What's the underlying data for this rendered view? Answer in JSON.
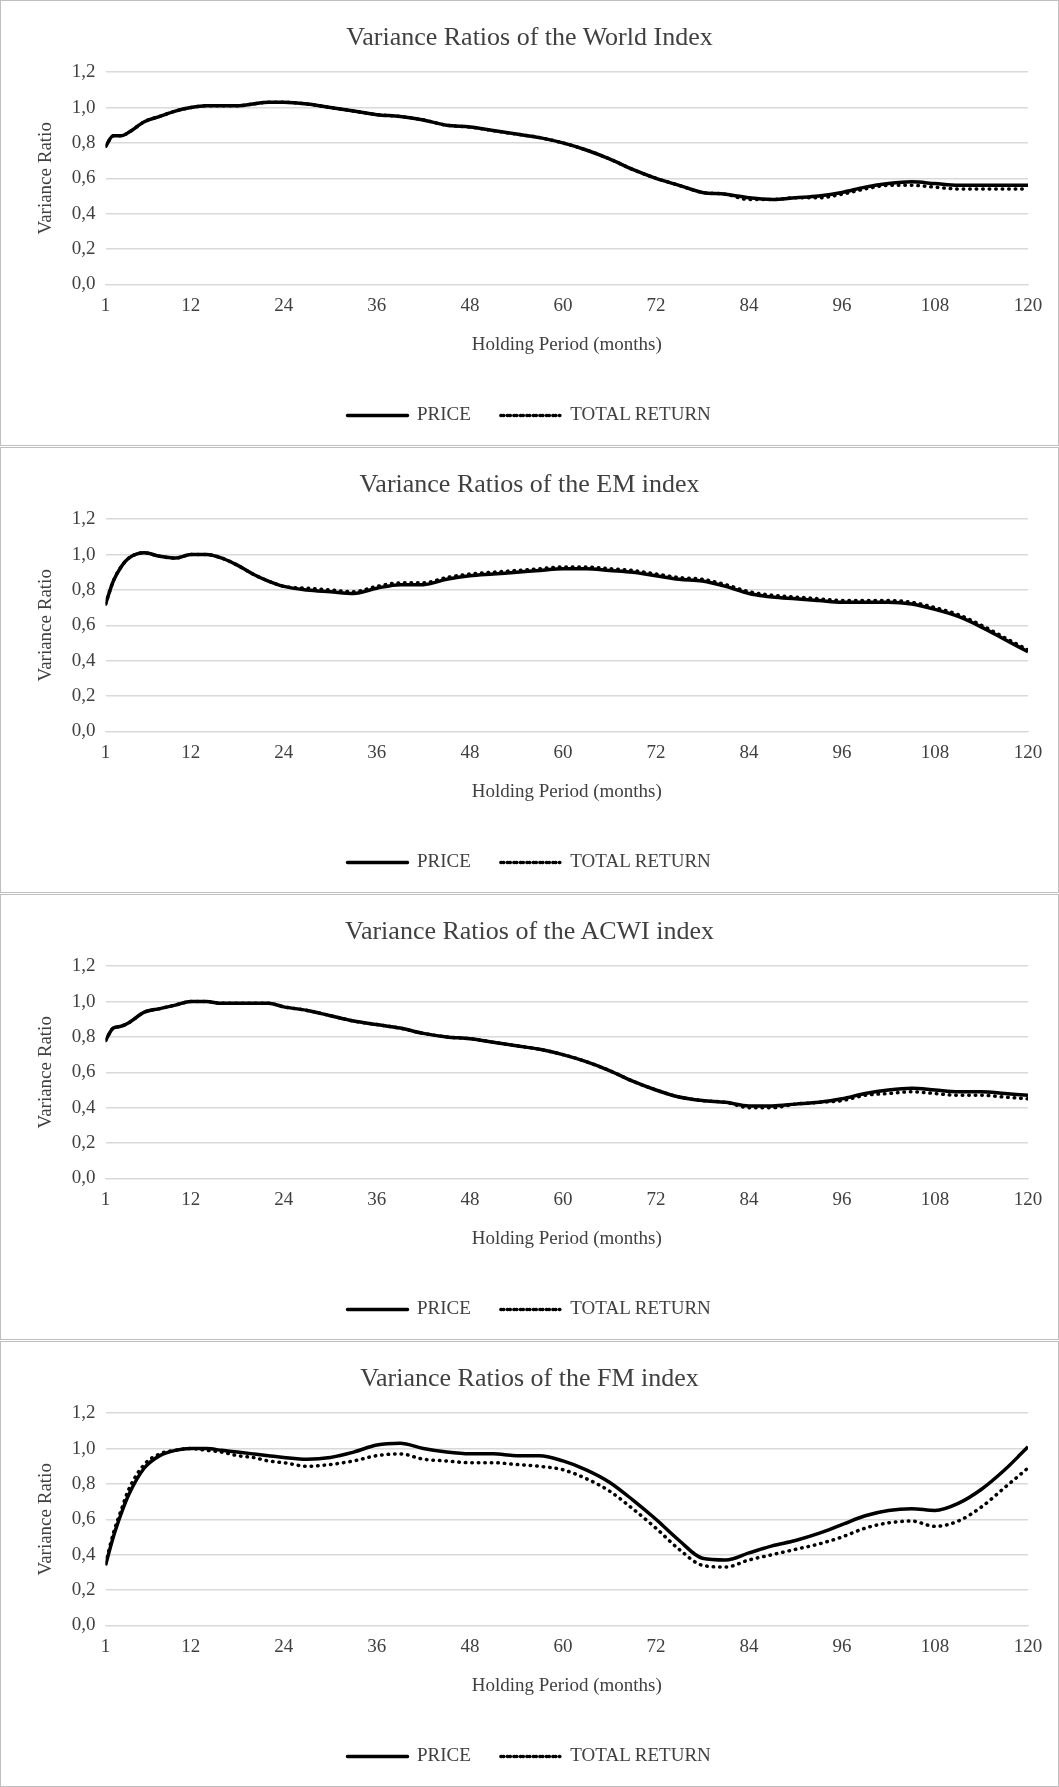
{
  "chart_data": [
    {
      "type": "line",
      "title": "Variance Ratios of the World Index",
      "xlabel": "Holding Period (months)",
      "ylabel": "Variance Ratio",
      "legend": "bottom",
      "grid": "y",
      "marker": "none",
      "x": [
        1,
        2,
        3,
        4,
        6,
        8,
        10,
        12,
        14,
        16,
        18,
        20,
        22,
        24,
        27,
        30,
        33,
        36,
        39,
        42,
        45,
        48,
        51,
        54,
        57,
        60,
        63,
        66,
        69,
        72,
        75,
        78,
        81,
        84,
        87,
        90,
        93,
        96,
        99,
        102,
        105,
        108,
        111,
        114,
        117,
        120
      ],
      "xlim": [
        1,
        120
      ],
      "xticks": [
        1,
        12,
        24,
        36,
        48,
        60,
        72,
        84,
        96,
        108,
        120
      ],
      "ylim": [
        0,
        1.2
      ],
      "yticks": [
        {
          "value": 0,
          "label": "0,0"
        },
        {
          "value": 0.2,
          "label": "0,2"
        },
        {
          "value": 0.4,
          "label": "0,4"
        },
        {
          "value": 0.6,
          "label": "0,6"
        },
        {
          "value": 0.8,
          "label": "0,8"
        },
        {
          "value": 1,
          "label": "1,0"
        },
        {
          "value": 1.2,
          "label": "1,2"
        }
      ],
      "series": [
        {
          "name": "PRICE",
          "color": "#000000",
          "line_style": "solid",
          "values": [
            0.78,
            0.84,
            0.84,
            0.86,
            0.92,
            0.95,
            0.98,
            1.0,
            1.01,
            1.01,
            1.01,
            1.02,
            1.03,
            1.03,
            1.02,
            1.0,
            0.98,
            0.96,
            0.95,
            0.93,
            0.9,
            0.89,
            0.87,
            0.85,
            0.83,
            0.8,
            0.76,
            0.71,
            0.65,
            0.6,
            0.56,
            0.52,
            0.51,
            0.49,
            0.48,
            0.49,
            0.5,
            0.52,
            0.55,
            0.57,
            0.58,
            0.57,
            0.56,
            0.56,
            0.56,
            0.56
          ]
        },
        {
          "name": "TOTAL RETURN",
          "color": "#000000",
          "line_style": "dotted",
          "values": [
            0.78,
            0.84,
            0.84,
            0.86,
            0.92,
            0.95,
            0.98,
            1.0,
            1.01,
            1.01,
            1.01,
            1.02,
            1.03,
            1.03,
            1.02,
            1.0,
            0.98,
            0.96,
            0.95,
            0.93,
            0.9,
            0.89,
            0.87,
            0.85,
            0.83,
            0.8,
            0.76,
            0.71,
            0.65,
            0.6,
            0.56,
            0.52,
            0.51,
            0.48,
            0.48,
            0.49,
            0.49,
            0.51,
            0.54,
            0.56,
            0.56,
            0.55,
            0.54,
            0.54,
            0.54,
            0.54
          ]
        }
      ]
    },
    {
      "type": "line",
      "title": "Variance Ratios of the EM index",
      "xlabel": "Holding Period (months)",
      "ylabel": "Variance Ratio",
      "legend": "bottom",
      "grid": "y",
      "marker": "none",
      "x": [
        1,
        2,
        3,
        4,
        6,
        8,
        10,
        12,
        14,
        16,
        18,
        20,
        22,
        24,
        27,
        30,
        33,
        36,
        39,
        42,
        45,
        48,
        51,
        54,
        57,
        60,
        63,
        66,
        69,
        72,
        75,
        78,
        81,
        84,
        87,
        90,
        93,
        96,
        99,
        102,
        105,
        108,
        111,
        114,
        117,
        120
      ],
      "xlim": [
        1,
        120
      ],
      "xticks": [
        1,
        12,
        24,
        36,
        48,
        60,
        72,
        84,
        96,
        108,
        120
      ],
      "ylim": [
        0,
        1.2
      ],
      "yticks": [
        {
          "value": 0,
          "label": "0,0"
        },
        {
          "value": 0.2,
          "label": "0,2"
        },
        {
          "value": 0.4,
          "label": "0,4"
        },
        {
          "value": 0.6,
          "label": "0,6"
        },
        {
          "value": 0.8,
          "label": "0,8"
        },
        {
          "value": 1,
          "label": "1,0"
        },
        {
          "value": 1.2,
          "label": "1,2"
        }
      ],
      "series": [
        {
          "name": "PRICE",
          "color": "#000000",
          "line_style": "solid",
          "values": [
            0.72,
            0.85,
            0.93,
            0.98,
            1.01,
            0.99,
            0.98,
            1.0,
            1.0,
            0.98,
            0.94,
            0.89,
            0.85,
            0.82,
            0.8,
            0.79,
            0.78,
            0.81,
            0.83,
            0.83,
            0.86,
            0.88,
            0.89,
            0.9,
            0.91,
            0.92,
            0.92,
            0.91,
            0.9,
            0.88,
            0.86,
            0.85,
            0.82,
            0.78,
            0.76,
            0.75,
            0.74,
            0.73,
            0.73,
            0.73,
            0.72,
            0.69,
            0.65,
            0.59,
            0.52,
            0.45
          ]
        },
        {
          "name": "TOTAL RETURN",
          "color": "#000000",
          "line_style": "dotted",
          "values": [
            0.72,
            0.85,
            0.93,
            0.98,
            1.01,
            0.99,
            0.98,
            1.0,
            1.0,
            0.98,
            0.94,
            0.89,
            0.85,
            0.82,
            0.81,
            0.8,
            0.79,
            0.82,
            0.84,
            0.84,
            0.87,
            0.89,
            0.9,
            0.91,
            0.92,
            0.93,
            0.93,
            0.92,
            0.91,
            0.89,
            0.87,
            0.86,
            0.83,
            0.79,
            0.77,
            0.76,
            0.75,
            0.74,
            0.74,
            0.74,
            0.73,
            0.7,
            0.66,
            0.6,
            0.53,
            0.46
          ]
        }
      ]
    },
    {
      "type": "line",
      "title": "Variance Ratios of the ACWI index",
      "xlabel": "Holding Period (months)",
      "ylabel": "Variance Ratio",
      "legend": "bottom",
      "grid": "y",
      "marker": "none",
      "x": [
        1,
        2,
        3,
        4,
        6,
        8,
        10,
        12,
        14,
        16,
        18,
        20,
        22,
        24,
        27,
        30,
        33,
        36,
        39,
        42,
        45,
        48,
        51,
        54,
        57,
        60,
        63,
        66,
        69,
        72,
        75,
        78,
        81,
        84,
        87,
        90,
        93,
        96,
        99,
        102,
        105,
        108,
        111,
        114,
        117,
        120
      ],
      "xlim": [
        1,
        120
      ],
      "xticks": [
        1,
        12,
        24,
        36,
        48,
        60,
        72,
        84,
        96,
        108,
        120
      ],
      "ylim": [
        0,
        1.2
      ],
      "yticks": [
        {
          "value": 0,
          "label": "0,0"
        },
        {
          "value": 0.2,
          "label": "0,2"
        },
        {
          "value": 0.4,
          "label": "0,4"
        },
        {
          "value": 0.6,
          "label": "0,6"
        },
        {
          "value": 0.8,
          "label": "0,8"
        },
        {
          "value": 1,
          "label": "1,0"
        },
        {
          "value": 1.2,
          "label": "1,2"
        }
      ],
      "series": [
        {
          "name": "PRICE",
          "color": "#000000",
          "line_style": "solid",
          "values": [
            0.78,
            0.85,
            0.86,
            0.88,
            0.94,
            0.96,
            0.98,
            1.0,
            1.0,
            0.99,
            0.99,
            0.99,
            0.99,
            0.97,
            0.95,
            0.92,
            0.89,
            0.87,
            0.85,
            0.82,
            0.8,
            0.79,
            0.77,
            0.75,
            0.73,
            0.7,
            0.66,
            0.61,
            0.55,
            0.5,
            0.46,
            0.44,
            0.43,
            0.41,
            0.41,
            0.42,
            0.43,
            0.45,
            0.48,
            0.5,
            0.51,
            0.5,
            0.49,
            0.49,
            0.48,
            0.47
          ]
        },
        {
          "name": "TOTAL RETURN",
          "color": "#000000",
          "line_style": "dotted",
          "values": [
            0.78,
            0.85,
            0.86,
            0.88,
            0.94,
            0.96,
            0.98,
            1.0,
            1.0,
            0.99,
            0.99,
            0.99,
            0.99,
            0.97,
            0.95,
            0.92,
            0.89,
            0.87,
            0.85,
            0.82,
            0.8,
            0.79,
            0.77,
            0.75,
            0.73,
            0.7,
            0.66,
            0.61,
            0.55,
            0.5,
            0.46,
            0.44,
            0.43,
            0.4,
            0.4,
            0.42,
            0.43,
            0.44,
            0.47,
            0.48,
            0.49,
            0.48,
            0.47,
            0.47,
            0.46,
            0.45
          ]
        }
      ]
    },
    {
      "type": "line",
      "title": "Variance Ratios of the FM index",
      "xlabel": "Holding Period (months)",
      "ylabel": "Variance Ratio",
      "legend": "bottom",
      "grid": "y",
      "marker": "none",
      "x": [
        1,
        2,
        3,
        4,
        6,
        8,
        10,
        12,
        14,
        16,
        18,
        20,
        22,
        24,
        27,
        30,
        33,
        36,
        39,
        42,
        45,
        48,
        51,
        54,
        57,
        60,
        63,
        66,
        69,
        72,
        75,
        78,
        81,
        84,
        87,
        90,
        93,
        96,
        99,
        102,
        105,
        108,
        111,
        114,
        117,
        120
      ],
      "xlim": [
        1,
        120
      ],
      "xticks": [
        1,
        12,
        24,
        36,
        48,
        60,
        72,
        84,
        96,
        108,
        120
      ],
      "ylim": [
        0,
        1.2
      ],
      "yticks": [
        {
          "value": 0,
          "label": "0,0"
        },
        {
          "value": 0.2,
          "label": "0,2"
        },
        {
          "value": 0.4,
          "label": "0,4"
        },
        {
          "value": 0.6,
          "label": "0,6"
        },
        {
          "value": 0.8,
          "label": "0,8"
        },
        {
          "value": 1,
          "label": "1,0"
        },
        {
          "value": 1.2,
          "label": "1,2"
        }
      ],
      "series": [
        {
          "name": "PRICE",
          "color": "#000000",
          "line_style": "solid",
          "values": [
            0.34,
            0.5,
            0.63,
            0.74,
            0.89,
            0.96,
            0.99,
            1.0,
            1.0,
            0.99,
            0.98,
            0.97,
            0.96,
            0.95,
            0.94,
            0.95,
            0.98,
            1.02,
            1.03,
            1.0,
            0.98,
            0.97,
            0.97,
            0.96,
            0.96,
            0.93,
            0.88,
            0.81,
            0.71,
            0.6,
            0.48,
            0.38,
            0.37,
            0.41,
            0.45,
            0.48,
            0.52,
            0.57,
            0.62,
            0.65,
            0.66,
            0.65,
            0.69,
            0.77,
            0.88,
            1.01
          ]
        },
        {
          "name": "TOTAL RETURN",
          "color": "#000000",
          "line_style": "dotted",
          "values": [
            0.35,
            0.52,
            0.65,
            0.77,
            0.91,
            0.97,
            0.99,
            1.0,
            0.99,
            0.98,
            0.96,
            0.95,
            0.93,
            0.92,
            0.9,
            0.91,
            0.93,
            0.96,
            0.97,
            0.94,
            0.93,
            0.92,
            0.92,
            0.91,
            0.9,
            0.88,
            0.83,
            0.76,
            0.66,
            0.55,
            0.43,
            0.34,
            0.33,
            0.37,
            0.4,
            0.43,
            0.46,
            0.5,
            0.55,
            0.58,
            0.59,
            0.56,
            0.59,
            0.67,
            0.78,
            0.89
          ]
        }
      ]
    }
  ]
}
